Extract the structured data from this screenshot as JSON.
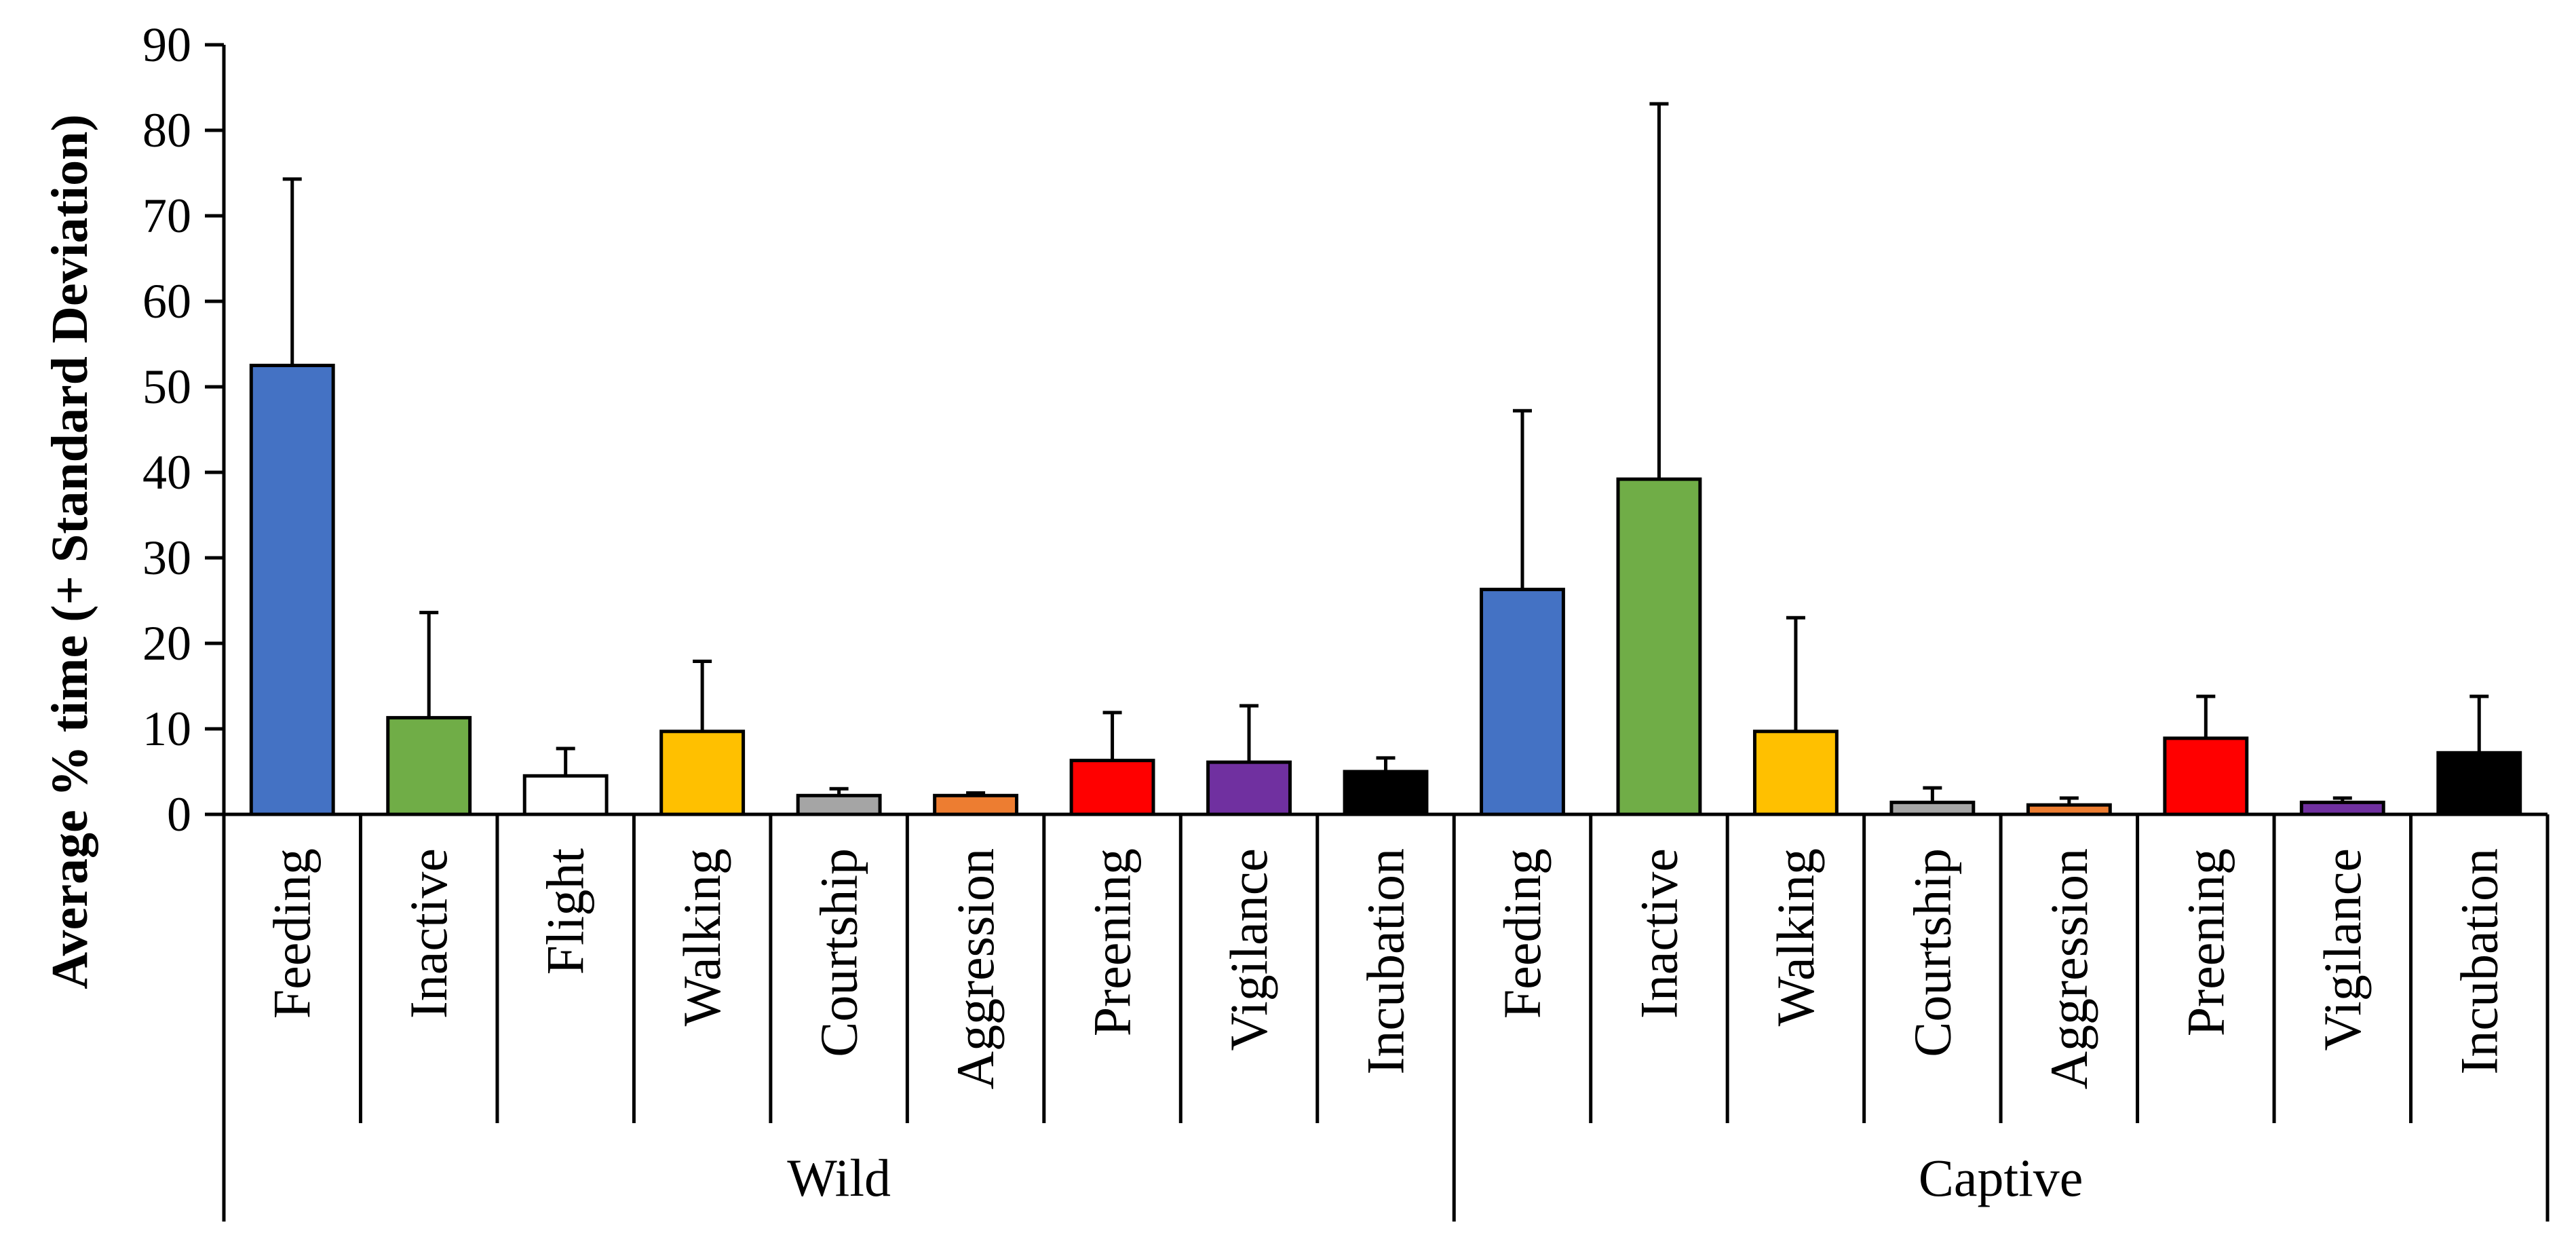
{
  "chart_data": {
    "type": "bar",
    "ylabel": "Average % time (+ Standard Deviation)",
    "ylim": [
      0,
      90
    ],
    "yticks": [
      0,
      10,
      20,
      30,
      40,
      50,
      60,
      70,
      80,
      90
    ],
    "error_bars": "+ Standard Deviation",
    "groups": [
      {
        "name": "Wild",
        "bars": [
          {
            "category": "Feeding",
            "value": 52.5,
            "sd": 21.8,
            "color": "#4472C4"
          },
          {
            "category": "Inactive",
            "value": 11.3,
            "sd": 12.3,
            "color": "#70AD47"
          },
          {
            "category": "Flight",
            "value": 4.5,
            "sd": 3.2,
            "color": "#FFFFFF"
          },
          {
            "category": "Walking",
            "value": 9.7,
            "sd": 8.2,
            "color": "#FFC000"
          },
          {
            "category": "Courtship",
            "value": 2.2,
            "sd": 0.8,
            "color": "#A5A5A5"
          },
          {
            "category": "Aggression",
            "value": 2.2,
            "sd": 0.3,
            "color": "#ED7D31"
          },
          {
            "category": "Preening",
            "value": 6.3,
            "sd": 5.6,
            "color": "#FF0000"
          },
          {
            "category": "Vigilance",
            "value": 6.1,
            "sd": 6.6,
            "color": "#7030A0"
          },
          {
            "category": "Incubation",
            "value": 5.0,
            "sd": 1.6,
            "color": "#000000"
          }
        ]
      },
      {
        "name": "Captive",
        "bars": [
          {
            "category": "Feeding",
            "value": 26.3,
            "sd": 20.9,
            "color": "#4472C4"
          },
          {
            "category": "Inactive",
            "value": 39.2,
            "sd": 43.9,
            "color": "#70AD47"
          },
          {
            "category": "Walking",
            "value": 9.7,
            "sd": 13.3,
            "color": "#FFC000"
          },
          {
            "category": "Courtship",
            "value": 1.4,
            "sd": 1.7,
            "color": "#A5A5A5"
          },
          {
            "category": "Aggression",
            "value": 1.1,
            "sd": 0.8,
            "color": "#ED7D31"
          },
          {
            "category": "Preening",
            "value": 8.9,
            "sd": 4.9,
            "color": "#FF0000"
          },
          {
            "category": "Vigilance",
            "value": 1.4,
            "sd": 0.5,
            "color": "#7030A0"
          },
          {
            "category": "Incubation",
            "value": 7.2,
            "sd": 6.6,
            "color": "#000000"
          }
        ]
      }
    ]
  }
}
